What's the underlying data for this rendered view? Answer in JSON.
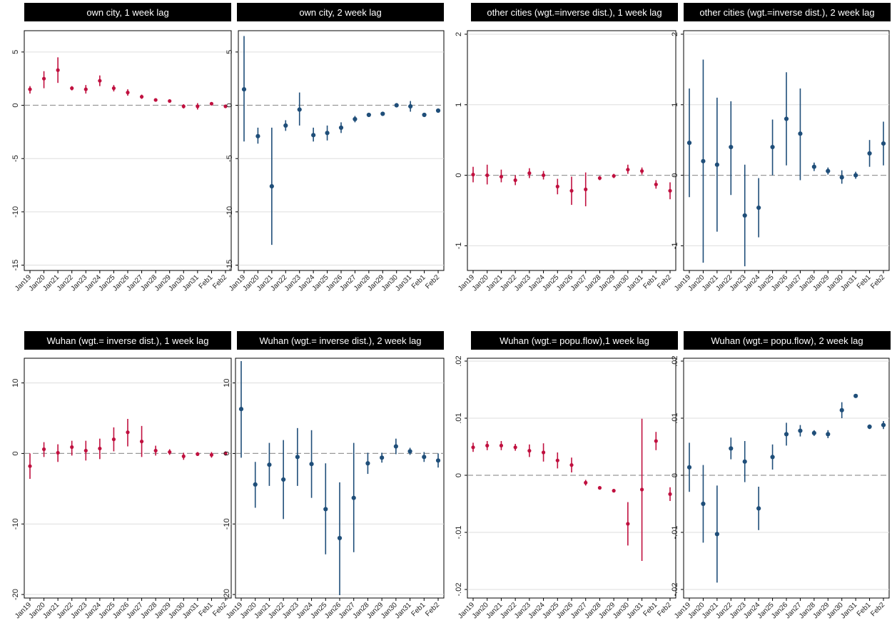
{
  "colors": {
    "red": "#c0103f",
    "blue": "#1f4e79",
    "title_bg": "#000000",
    "grid": "#dddddd",
    "zero": "#999999"
  },
  "chart_data": [
    {
      "type": "scatter",
      "title": "own city, 1 week lag",
      "color": "red",
      "grid": true,
      "ylim": [
        -15.5,
        7
      ],
      "yticks": [
        5,
        0,
        -5,
        -10,
        -15
      ],
      "ytick_labels": [
        "5",
        "0",
        "-5",
        "-10",
        "-15"
      ],
      "categories": [
        "Jan19",
        "Jan20",
        "Jan21",
        "Jan22",
        "Jan23",
        "Jan24",
        "Jan25",
        "Jan26",
        "Jan27",
        "Jan28",
        "Jan29",
        "Jan30",
        "Jan31",
        "Feb1",
        "Feb2"
      ],
      "values": [
        1.5,
        2.5,
        3.3,
        1.6,
        1.5,
        2.3,
        1.6,
        1.2,
        0.8,
        0.5,
        0.4,
        -0.1,
        -0.1,
        0.15,
        -0.1
      ],
      "ci_low": [
        1.1,
        1.6,
        2.1,
        1.4,
        1.1,
        1.8,
        1.3,
        0.9,
        0.6,
        0.35,
        0.25,
        -0.3,
        -0.4,
        0.05,
        -0.25
      ],
      "ci_high": [
        1.8,
        3.2,
        4.5,
        1.8,
        1.9,
        2.8,
        1.9,
        1.5,
        1.0,
        0.65,
        0.55,
        0.1,
        0.2,
        0.25,
        0.05
      ]
    },
    {
      "type": "scatter",
      "title": "own city, 2 week lag",
      "color": "blue",
      "grid": true,
      "ylim": [
        -15.5,
        7
      ],
      "yticks": [
        5,
        0,
        -5,
        -10,
        -15
      ],
      "ytick_labels": [
        "5",
        "0",
        "-5",
        "-10",
        "-15"
      ],
      "categories": [
        "Jan19",
        "Jan20",
        "Jan21",
        "Jan22",
        "Jan23",
        "Jan24",
        "Jan25",
        "Jan26",
        "Jan27",
        "Jan28",
        "Jan29",
        "Jan30",
        "Jan31",
        "Feb1",
        "Feb2"
      ],
      "values": [
        1.5,
        -2.9,
        -7.6,
        -1.9,
        -0.4,
        -2.8,
        -2.6,
        -2.1,
        -1.3,
        -0.9,
        -0.8,
        0.0,
        -0.1,
        -0.9,
        -0.5
      ],
      "ci_low": [
        -3.4,
        -3.6,
        -13.1,
        -2.4,
        -1.9,
        -3.4,
        -3.3,
        -2.6,
        -1.6,
        -1.1,
        -1.0,
        -0.2,
        -0.6,
        -1.1,
        -0.7
      ],
      "ci_high": [
        6.5,
        -2.1,
        -2.1,
        -1.4,
        1.2,
        -2.1,
        -1.9,
        -1.6,
        -1.0,
        -0.7,
        -0.6,
        0.2,
        0.4,
        -0.7,
        -0.3
      ]
    },
    {
      "type": "scatter",
      "title": "other cities (wgt.=inverse dist.), 1 week lag",
      "color": "red",
      "grid": true,
      "ylim": [
        -1.35,
        2.05
      ],
      "yticks": [
        2,
        1,
        0,
        -1
      ],
      "ytick_labels": [
        "2",
        "1",
        "0",
        "-1"
      ],
      "categories": [
        "Jan19",
        "Jan20",
        "Jan21",
        "Jan22",
        "Jan23",
        "Jan24",
        "Jan25",
        "Jan26",
        "Jan27",
        "Jan28",
        "Jan29",
        "Jan30",
        "Jan31",
        "Feb1",
        "Feb2"
      ],
      "values": [
        0.01,
        0.0,
        -0.02,
        -0.07,
        0.03,
        0.0,
        -0.16,
        -0.22,
        -0.2,
        -0.04,
        -0.01,
        0.08,
        0.06,
        -0.13,
        -0.22
      ],
      "ci_low": [
        -0.1,
        -0.13,
        -0.1,
        -0.14,
        -0.04,
        -0.06,
        -0.27,
        -0.42,
        -0.44,
        -0.07,
        -0.04,
        0.02,
        0.01,
        -0.19,
        -0.34
      ],
      "ci_high": [
        0.12,
        0.15,
        0.08,
        0.0,
        0.1,
        0.06,
        -0.05,
        -0.02,
        0.04,
        -0.01,
        0.02,
        0.15,
        0.11,
        -0.07,
        -0.1
      ]
    },
    {
      "type": "scatter",
      "title": "other cities (wgt.=inverse dist.), 2 week lag",
      "color": "blue",
      "grid": true,
      "ylim": [
        -1.35,
        2.05
      ],
      "yticks": [
        2,
        1,
        0,
        -1
      ],
      "ytick_labels": [
        "2",
        "1",
        "0",
        "-1"
      ],
      "categories": [
        "Jan19",
        "Jan20",
        "Jan21",
        "Jan22",
        "Jan23",
        "Jan24",
        "Jan25",
        "Jan26",
        "Jan27",
        "Jan28",
        "Jan29",
        "Jan30",
        "Jan31",
        "Feb1",
        "Feb2"
      ],
      "values": [
        0.46,
        0.2,
        0.15,
        0.4,
        -0.57,
        -0.46,
        0.4,
        0.8,
        0.59,
        0.12,
        0.06,
        -0.03,
        0.0,
        0.31,
        0.45
      ],
      "ci_low": [
        -0.31,
        -1.24,
        -0.8,
        -0.28,
        -1.29,
        -0.88,
        0.0,
        0.14,
        -0.07,
        0.06,
        0.01,
        -0.12,
        -0.05,
        0.12,
        0.14
      ],
      "ci_high": [
        1.23,
        1.64,
        1.1,
        1.05,
        0.15,
        -0.04,
        0.79,
        1.46,
        1.23,
        0.18,
        0.11,
        0.07,
        0.05,
        0.5,
        0.76
      ]
    },
    {
      "type": "scatter",
      "title": "Wuhan (wgt.= inverse dist.), 1 week lag",
      "color": "red",
      "grid": true,
      "ylim": [
        -20.5,
        13.5
      ],
      "yticks": [
        10,
        0,
        -10,
        -20
      ],
      "ytick_labels": [
        "10",
        "0",
        "-10",
        "-20"
      ],
      "categories": [
        "Jan19",
        "Jan20",
        "Jan21",
        "Jan22",
        "Jan23",
        "Jan24",
        "Jan25",
        "Jan26",
        "Jan27",
        "Jan28",
        "Jan29",
        "Jan30",
        "Jan31",
        "Feb1",
        "Feb2"
      ],
      "values": [
        -1.8,
        0.6,
        0.1,
        0.9,
        0.4,
        0.7,
        2.0,
        3.0,
        1.7,
        0.4,
        0.2,
        -0.4,
        -0.1,
        -0.2,
        0.0
      ],
      "ci_low": [
        -3.6,
        -0.5,
        -1.2,
        -0.3,
        -1.0,
        -0.8,
        0.3,
        1.0,
        -0.5,
        -0.3,
        -0.2,
        -0.9,
        -0.3,
        -0.6,
        -0.3
      ],
      "ci_high": [
        0.0,
        1.6,
        1.3,
        1.8,
        1.8,
        2.1,
        3.7,
        4.9,
        3.9,
        1.1,
        0.6,
        0.1,
        0.2,
        0.2,
        0.3
      ]
    },
    {
      "type": "scatter",
      "title": "Wuhan (wgt.= inverse dist.), 2 week lag",
      "color": "blue",
      "grid": true,
      "ylim": [
        -20.5,
        13.5
      ],
      "yticks": [
        10,
        0,
        -10,
        -20
      ],
      "ytick_labels": [
        "10",
        "0",
        "-10",
        "-20"
      ],
      "categories": [
        "Jan19",
        "Jan20",
        "Jan21",
        "Jan22",
        "Jan23",
        "Jan24",
        "Jan25",
        "Jan26",
        "Jan27",
        "Jan28",
        "Jan29",
        "Jan30",
        "Jan31",
        "Feb1",
        "Feb2"
      ],
      "values": [
        6.3,
        -4.4,
        -1.6,
        -3.7,
        -0.5,
        -1.5,
        -7.9,
        -12.0,
        -6.3,
        -1.4,
        -0.6,
        1.0,
        0.3,
        -0.5,
        -1.0
      ],
      "ci_low": [
        -0.6,
        -7.7,
        -4.6,
        -9.3,
        -4.6,
        -6.3,
        -14.3,
        -20.1,
        -14.0,
        -2.9,
        -1.3,
        -0.1,
        -0.2,
        -1.2,
        -2.0
      ],
      "ci_high": [
        13.1,
        -1.2,
        1.5,
        1.9,
        3.6,
        3.3,
        -1.4,
        -4.1,
        1.5,
        0.1,
        0.1,
        2.1,
        0.8,
        0.2,
        0.0
      ]
    },
    {
      "type": "scatter",
      "title": "Wuhan (wgt.= popu.flow),1 week lag",
      "color": "red",
      "grid": true,
      "ylim": [
        -0.0215,
        0.0205
      ],
      "yticks": [
        0.02,
        0.01,
        0,
        -0.01,
        -0.02
      ],
      "ytick_labels": [
        ".02",
        ".01",
        "0",
        "-.01",
        "-.02"
      ],
      "categories": [
        "Jan19",
        "Jan20",
        "Jan21",
        "Jan22",
        "Jan23",
        "Jan24",
        "Jan25",
        "Jan26",
        "Jan27",
        "Jan28",
        "Jan29",
        "Jan30",
        "Jan31",
        "Feb1",
        "Feb2"
      ],
      "values": [
        0.0049,
        0.0052,
        0.0052,
        0.0049,
        0.0043,
        0.004,
        0.0026,
        0.0018,
        -0.0013,
        -0.0022,
        -0.0027,
        -0.0085,
        -0.0025,
        0.006,
        -0.0033
      ],
      "ci_low": [
        0.0041,
        0.0044,
        0.0044,
        0.0043,
        0.0032,
        0.0024,
        0.0012,
        0.0005,
        -0.0018,
        -0.0025,
        -0.003,
        -0.0123,
        -0.015,
        0.0044,
        -0.0045
      ],
      "ci_high": [
        0.0057,
        0.006,
        0.006,
        0.0055,
        0.0054,
        0.0056,
        0.004,
        0.0031,
        -0.0008,
        -0.0019,
        -0.0024,
        -0.0047,
        0.0099,
        0.0076,
        -0.0021
      ]
    },
    {
      "type": "scatter",
      "title": "Wuhan (wgt.= popu.flow), 2 week lag",
      "color": "blue",
      "grid": true,
      "ylim": [
        -0.0215,
        0.0205
      ],
      "yticks": [
        0.02,
        0.01,
        0,
        -0.01,
        -0.02
      ],
      "ytick_labels": [
        ".02",
        ".01",
        "0",
        "-.01",
        "-.02"
      ],
      "categories": [
        "Jan19",
        "Jan20",
        "Jan21",
        "Jan22",
        "Jan23",
        "Jan24",
        "Jan25",
        "Jan26",
        "Jan27",
        "Jan28",
        "Jan29",
        "Jan30",
        "Jan31",
        "Feb1",
        "Feb2"
      ],
      "values": [
        0.0014,
        -0.005,
        -0.0103,
        0.0047,
        0.0024,
        -0.0058,
        0.0032,
        0.0072,
        0.0078,
        0.0074,
        0.0072,
        0.0114,
        0.0139,
        0.0085,
        0.0088
      ],
      "ci_low": [
        -0.0029,
        -0.0118,
        -0.0188,
        0.0028,
        -0.0012,
        -0.0096,
        0.001,
        0.0052,
        0.0068,
        0.0069,
        0.0065,
        0.01,
        0.0136,
        0.0081,
        0.0081
      ],
      "ci_high": [
        0.0057,
        0.0018,
        -0.0018,
        0.0066,
        0.006,
        -0.002,
        0.0054,
        0.0092,
        0.0088,
        0.0079,
        0.0079,
        0.0128,
        0.0142,
        0.0089,
        0.0095
      ]
    }
  ]
}
